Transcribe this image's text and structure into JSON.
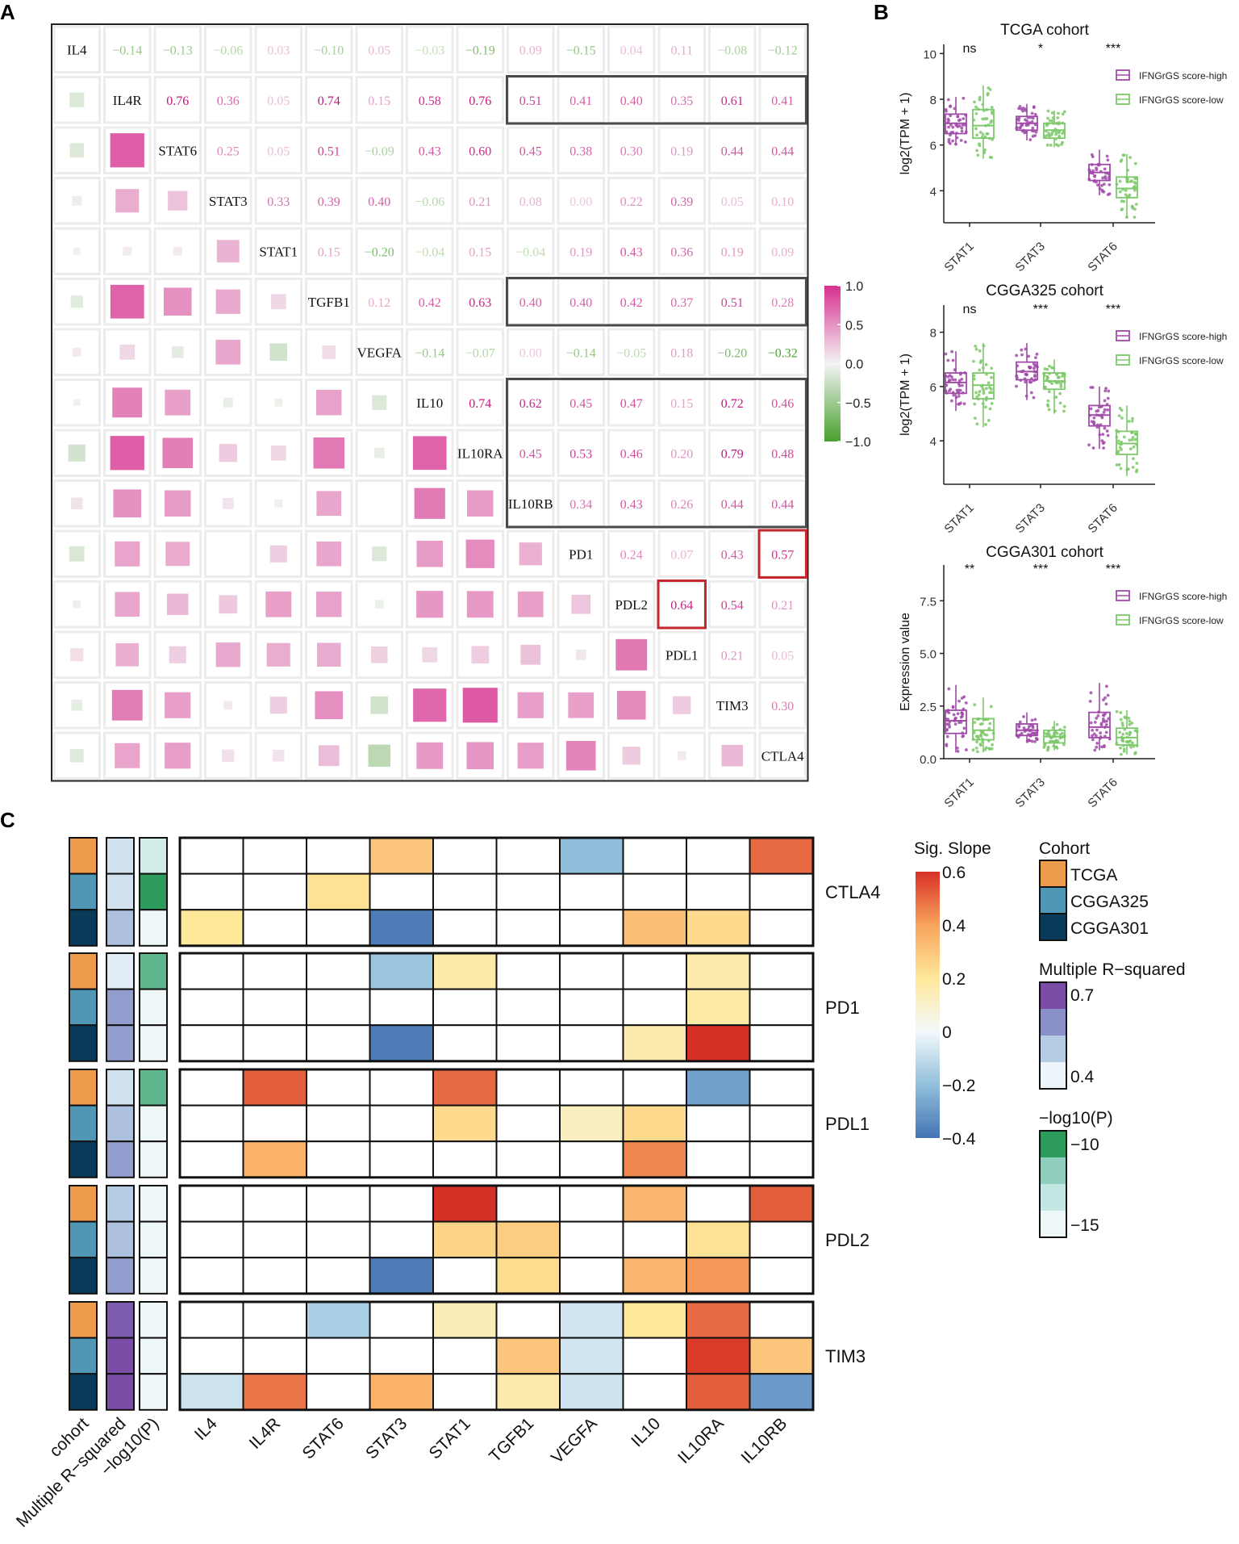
{
  "panels": {
    "a": "A",
    "b": "B",
    "c": "C"
  },
  "colors": {
    "high": "#a04aa8",
    "low": "#7cc86a",
    "cohort": {
      "TCGA": "#ee9a4c",
      "CGGA325": "#4f97b5",
      "CGGA301": "#083b5a"
    }
  },
  "chart_data": [
    {
      "type": "heatmap",
      "id": "A",
      "title": "",
      "genes": [
        "IL4",
        "IL4R",
        "STAT6",
        "STAT3",
        "STAT1",
        "TGFB1",
        "VEGFA",
        "IL10",
        "IL10RA",
        "IL10RB",
        "PD1",
        "PDL2",
        "PDL1",
        "TIM3",
        "CTLA4"
      ],
      "upper": [
        [
          -0.14,
          -0.13,
          -0.06,
          0.03,
          -0.1,
          0.05,
          -0.03,
          -0.19,
          0.09,
          -0.15,
          0.04,
          0.11,
          -0.08,
          -0.12
        ],
        [
          0.76,
          0.36,
          0.05,
          0.74,
          0.15,
          0.58,
          0.76,
          0.51,
          0.41,
          0.4,
          0.35,
          0.61,
          0.41
        ],
        [
          0.25,
          0.05,
          0.51,
          -0.09,
          0.43,
          0.6,
          0.45,
          0.38,
          0.3,
          0.19,
          0.44,
          0.44
        ],
        [
          0.33,
          0.39,
          0.4,
          -0.06,
          0.21,
          0.08,
          0.0,
          0.22,
          0.39,
          0.05,
          0.1
        ],
        [
          0.15,
          -0.2,
          -0.04,
          0.15,
          -0.04,
          0.19,
          0.43,
          0.36,
          0.19,
          0.09
        ],
        [
          0.12,
          0.42,
          0.63,
          0.4,
          0.4,
          0.42,
          0.37,
          0.51,
          0.28
        ],
        [
          -0.14,
          -0.07,
          0.0,
          -0.14,
          -0.05,
          0.18,
          -0.2,
          -0.32
        ],
        [
          0.74,
          0.62,
          0.45,
          0.47,
          0.15,
          0.72,
          0.46
        ],
        [
          0.45,
          0.53,
          0.46,
          0.2,
          0.79,
          0.48
        ],
        [
          0.34,
          0.43,
          0.26,
          0.44,
          0.44
        ],
        [
          0.24,
          0.07,
          0.43,
          0.57
        ],
        [
          0.64,
          0.54,
          0.21
        ],
        [
          0.21,
          0.05
        ],
        [
          0.3
        ],
        []
      ],
      "value_labels": [
        [
          "−0.14",
          "−0.13",
          "−0.06",
          "0.03",
          "−0.10",
          "0.05",
          "−0.03",
          "−0.19",
          "0.09",
          "−0.15",
          "0.04",
          "0.11",
          "−0.08",
          "−0.12"
        ],
        [
          "0.76",
          "0.36",
          "0.05",
          "0.74",
          "0.15",
          "0.58",
          "0.76",
          "0.51",
          "0.41",
          "0.40",
          "0.35",
          "0.61",
          "0.41"
        ],
        [
          "0.25",
          "0.05",
          "0.51",
          "−0.09",
          "0.43",
          "0.60",
          "0.45",
          "0.38",
          "0.30",
          "0.19",
          "0.44",
          "0.44"
        ],
        [
          "0.33",
          "0.39",
          "0.40",
          "−0.06",
          "0.21",
          "0.08",
          "0.00",
          "0.22",
          "0.39",
          "0.05",
          "0.10"
        ],
        [
          "0.15",
          "−0.20",
          "−0.04",
          "0.15",
          "−0.04",
          "0.19",
          "0.43",
          "0.36",
          "0.19",
          "0.09"
        ],
        [
          "0.12",
          "0.42",
          "0.63",
          "0.40",
          "0.40",
          "0.42",
          "0.37",
          "0.51",
          "0.28"
        ],
        [
          "−0.14",
          "−0.07",
          "0.00",
          "−0.14",
          "−0.05",
          "0.18",
          "−0.20",
          "−0.32"
        ],
        [
          "0.74",
          "0.62",
          "0.45",
          "0.47",
          "0.15",
          "0.72",
          "0.46"
        ],
        [
          "0.45",
          "0.53",
          "0.46",
          "0.20",
          "0.79",
          "0.48"
        ],
        [
          "0.34",
          "0.43",
          "0.26",
          "0.44",
          "0.44"
        ],
        [
          "0.24",
          "0.07",
          "0.43",
          "0.57"
        ],
        [
          "0.64",
          "0.54",
          "0.21"
        ],
        [
          "0.21",
          "0.05"
        ],
        [
          "0.30"
        ],
        []
      ],
      "highlight_black": [
        {
          "row": "IL4R",
          "cols": [
            "IL10RB",
            "CTLA4"
          ]
        },
        {
          "row": "TGFB1",
          "cols": [
            "IL10RB",
            "CTLA4"
          ]
        },
        {
          "rows": [
            "IL10",
            "IL10RB"
          ],
          "cols": [
            "IL10RB",
            "CTLA4"
          ]
        }
      ],
      "highlight_red": [
        {
          "row": "PD1",
          "col": "CTLA4"
        },
        {
          "row": "PDL2",
          "col": "PDL1"
        }
      ],
      "colorbar": {
        "min": -1.0,
        "max": 1.0,
        "ticks": [
          "1.0",
          "0.5",
          "0.0",
          "−0.5",
          "−1.0"
        ]
      }
    },
    {
      "type": "boxplot",
      "id": "B1",
      "title": "TCGA cohort",
      "ylabel": "log2(TPM + 1)",
      "categories": [
        "STAT1",
        "STAT3",
        "STAT6"
      ],
      "ylim": [
        2.6,
        10.4
      ],
      "yticks": [
        4,
        6,
        8,
        10
      ],
      "ytick_labels": [
        "4",
        "6",
        "8",
        "10"
      ],
      "significance": [
        "ns",
        "*",
        "***"
      ],
      "legend": [
        "IFNGrGS score-high",
        "IFNGrGS score-low"
      ],
      "series": [
        {
          "name": "IFNGrGS score-high",
          "boxes": [
            [
              6.0,
              6.5,
              6.95,
              7.35,
              8.1
            ],
            [
              6.2,
              6.65,
              6.95,
              7.25,
              7.8
            ],
            [
              3.8,
              4.45,
              4.8,
              5.15,
              5.8
            ]
          ]
        },
        {
          "name": "IFNGrGS score-low",
          "boxes": [
            [
              5.4,
              6.3,
              6.85,
              7.55,
              8.6
            ],
            [
              5.9,
              6.3,
              6.65,
              6.95,
              7.5
            ],
            [
              2.8,
              3.7,
              4.1,
              4.6,
              5.6
            ]
          ]
        }
      ]
    },
    {
      "type": "boxplot",
      "id": "B2",
      "title": "CGGA325 cohort",
      "ylabel": "log2(TPM + 1)",
      "categories": [
        "STAT1",
        "STAT3",
        "STAT6"
      ],
      "ylim": [
        2.4,
        9.0
      ],
      "yticks": [
        4,
        6,
        8
      ],
      "ytick_labels": [
        "4",
        "6",
        "8"
      ],
      "significance": [
        "ns",
        "***",
        "***"
      ],
      "legend": [
        "IFNGrGS score-high",
        "IFNGrGS score-low"
      ],
      "series": [
        {
          "name": "IFNGrGS score-high",
          "boxes": [
            [
              5.1,
              5.75,
              6.15,
              6.5,
              7.3
            ],
            [
              5.5,
              6.25,
              6.55,
              6.9,
              7.6
            ],
            [
              3.7,
              4.55,
              4.95,
              5.3,
              6.0
            ]
          ]
        },
        {
          "name": "IFNGrGS score-low",
          "boxes": [
            [
              4.5,
              5.55,
              6.05,
              6.5,
              7.6
            ],
            [
              5.0,
              5.9,
              6.2,
              6.5,
              7.0
            ],
            [
              2.7,
              3.5,
              3.9,
              4.35,
              5.3
            ]
          ]
        }
      ]
    },
    {
      "type": "boxplot",
      "id": "B3",
      "title": "CGGA301 cohort",
      "ylabel": "Expression value",
      "categories": [
        "STAT1",
        "STAT3",
        "STAT6"
      ],
      "ylim": [
        0,
        9.2
      ],
      "yticks": [
        0,
        2.5,
        5,
        7.5
      ],
      "ytick_labels": [
        "0.0",
        "2.5",
        "5.0",
        "7.5"
      ],
      "significance": [
        "**",
        "***",
        "***"
      ],
      "legend": [
        "IFNGrGS score-high",
        "IFNGrGS score-low"
      ],
      "series": [
        {
          "name": "IFNGrGS score-high",
          "boxes": [
            [
              0.3,
              1.2,
              1.8,
              2.3,
              3.5
            ],
            [
              0.8,
              1.1,
              1.35,
              1.65,
              2.2
            ],
            [
              0.4,
              1.0,
              1.5,
              2.2,
              3.6
            ]
          ]
        },
        {
          "name": "IFNGrGS score-low",
          "boxes": [
            [
              0.3,
              0.9,
              1.35,
              1.9,
              2.9
            ],
            [
              0.4,
              0.75,
              1.05,
              1.35,
              1.8
            ],
            [
              0.2,
              0.65,
              1.0,
              1.45,
              2.3
            ]
          ]
        }
      ]
    },
    {
      "type": "heatmap",
      "id": "C",
      "title": "",
      "columns": [
        "IL4",
        "IL4R",
        "STAT6",
        "STAT3",
        "STAT1",
        "TGFB1",
        "VEGFA",
        "IL10",
        "IL10RA",
        "IL10RB"
      ],
      "annotation_labels": [
        "cohort",
        "Multiple R−squared",
        "−log10(P)"
      ],
      "row_cohorts": [
        "TCGA",
        "CGGA325",
        "CGGA301"
      ],
      "groups": [
        {
          "name": "CTLA4",
          "rsq": [
            0.45,
            0.45,
            0.52
          ],
          "logp": [
            -14,
            -10,
            -15
          ],
          "slopes": [
            [
              0,
              0,
              0,
              0.3,
              0,
              0,
              -0.2,
              0,
              0,
              0.5
            ],
            [
              0,
              0,
              0.22,
              0,
              0,
              0,
              0,
              0,
              0,
              0
            ],
            [
              0.2,
              0,
              0,
              -0.38,
              0,
              0,
              0,
              0.32,
              0.24,
              0
            ]
          ]
        },
        {
          "name": "PD1",
          "rsq": [
            0.42,
            0.58,
            0.58
          ],
          "logp": [
            -11,
            -15,
            -15
          ],
          "slopes": [
            [
              0,
              0,
              0,
              -0.18,
              0.17,
              0,
              0,
              0,
              0.16,
              0
            ],
            [
              0,
              0,
              0,
              0,
              0,
              0,
              0,
              0,
              0.18,
              0
            ],
            [
              0,
              0,
              0,
              -0.38,
              0,
              0,
              0,
              0.16,
              0.6,
              0
            ]
          ]
        },
        {
          "name": "PDL1",
          "rsq": [
            0.45,
            0.52,
            0.58
          ],
          "logp": [
            -11,
            -15,
            -15
          ],
          "slopes": [
            [
              0,
              0.52,
              0,
              0,
              0.5,
              0,
              0,
              0,
              -0.28,
              0
            ],
            [
              0,
              0,
              0,
              0,
              0.24,
              0,
              0.12,
              0.24,
              0,
              0
            ],
            [
              0,
              0.36,
              0,
              0,
              0,
              0,
              0,
              0.45,
              0,
              0
            ]
          ]
        },
        {
          "name": "PDL2",
          "rsq": [
            0.5,
            0.52,
            0.58
          ],
          "logp": [
            -15,
            -15,
            -15
          ],
          "slopes": [
            [
              0,
              0,
              0,
              0,
              0.62,
              0,
              0,
              0.35,
              0,
              0.52
            ],
            [
              0,
              0,
              0,
              0,
              0.26,
              0.28,
              0,
              0,
              0.22,
              0
            ],
            [
              0,
              0,
              0,
              -0.38,
              0,
              0.23,
              0,
              0.35,
              0.42,
              0
            ]
          ]
        },
        {
          "name": "TIM3",
          "rsq": [
            0.68,
            0.7,
            0.7
          ],
          "logp": [
            -15,
            -15,
            -15
          ],
          "slopes": [
            [
              0,
              0,
              -0.15,
              0,
              0.14,
              0,
              -0.07,
              0.2,
              0.5,
              0
            ],
            [
              0,
              0,
              0,
              0,
              0,
              0.3,
              -0.07,
              0,
              0.58,
              0.3
            ],
            [
              -0.08,
              0.48,
              0,
              0.36,
              0,
              0.16,
              -0.08,
              0,
              0.52,
              -0.3
            ]
          ]
        }
      ],
      "legend_slope": {
        "title": "Sig. Slope",
        "ticks": [
          "0.6",
          "0.4",
          "0.2",
          "0",
          "−0.2",
          "−0.4"
        ]
      },
      "legend_cohort": {
        "title": "Cohort",
        "items": [
          "TCGA",
          "CGGA325",
          "CGGA301"
        ]
      },
      "legend_rsq": {
        "title": "Multiple R−squared",
        "ticks": [
          "0.7",
          "0.4"
        ]
      },
      "legend_p": {
        "title": "−log10(P)",
        "ticks": [
          "−10",
          "−15"
        ]
      }
    }
  ]
}
